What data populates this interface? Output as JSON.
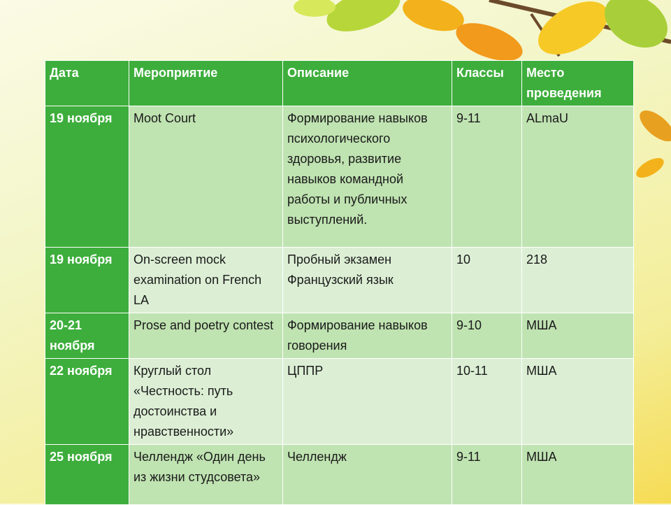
{
  "table": {
    "header": [
      "Дата",
      "Мероприятие",
      "Описание",
      "Классы",
      "Место проведения"
    ],
    "rows": [
      [
        "19 ноября",
        "Moot Court",
        "Формирование навыков психологического здоровья, развитие навыков командной работы и публичных выступлений.",
        "9-11",
        "ALmaU"
      ],
      [
        "19 ноября",
        "On-screen mock examination on French LA",
        "Пробный экзамен Французский язык",
        "10",
        "218"
      ],
      [
        "20-21 ноября",
        "Prose and poetry contest",
        "Формирование навыков говорения",
        "9-10",
        "МША"
      ],
      [
        "22 ноября",
        "Круглый стол «Честность: путь достоинства и нравственности»",
        "ЦППР",
        "10-11",
        "МША"
      ],
      [
        "25 ноября",
        "Челлендж «Один день из жизни студсовета»",
        "Челлендж",
        "9-11",
        "МША"
      ]
    ]
  }
}
